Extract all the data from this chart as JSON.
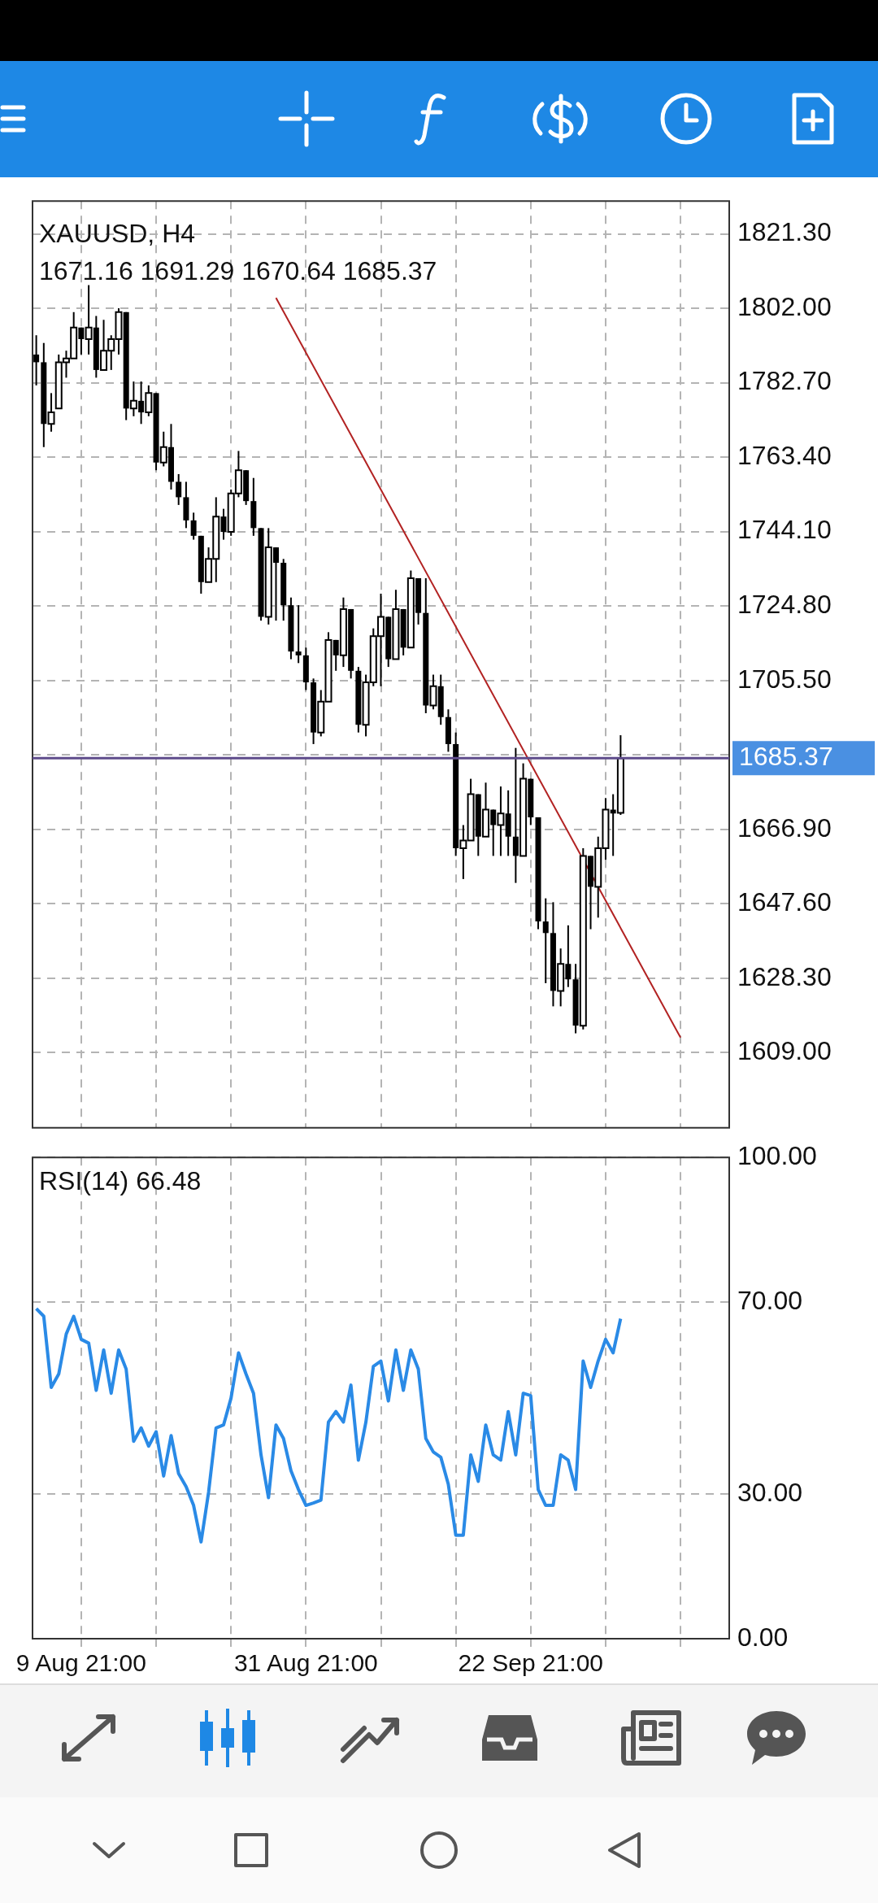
{
  "chart_data": [
    {
      "type": "candlestick",
      "title": "XAUUSD, H4",
      "subtitle": "1671.16 1691.29 1670.64 1685.37",
      "categories": [
        null,
        null,
        null,
        null,
        null,
        null,
        null,
        null,
        null,
        null,
        null,
        null,
        null,
        null,
        null,
        null,
        null,
        null,
        null,
        null,
        null,
        null,
        null,
        null,
        null,
        null,
        null,
        null,
        null,
        null,
        null,
        null,
        null,
        null,
        null,
        null,
        null,
        null,
        null,
        null,
        null,
        null,
        null,
        null,
        null,
        null,
        null,
        null,
        null,
        null,
        null,
        null,
        null,
        null,
        null,
        null,
        null,
        null,
        null,
        null,
        null,
        null,
        null,
        null,
        null,
        null,
        null,
        null,
        null,
        null,
        null,
        null,
        null,
        null,
        null,
        null,
        null,
        null,
        null,
        null,
        null,
        null,
        null,
        null,
        null,
        null,
        null,
        null,
        null,
        null,
        null,
        null,
        null
      ],
      "ohlc": [
        [
          1790,
          1795,
          1782,
          1788
        ],
        [
          1788,
          1793,
          1766,
          1772
        ],
        [
          1772,
          1780,
          1770,
          1775
        ],
        [
          1776,
          1790,
          1776,
          1788
        ],
        [
          1788,
          1791,
          1784,
          1789
        ],
        [
          1789,
          1801,
          1789,
          1797
        ],
        [
          1797,
          1797,
          1790,
          1794
        ],
        [
          1794,
          1808,
          1790,
          1797
        ],
        [
          1797,
          1800,
          1784,
          1786
        ],
        [
          1786,
          1799,
          1786,
          1791
        ],
        [
          1791,
          1795,
          1786,
          1794
        ],
        [
          1794,
          1802,
          1790,
          1801
        ],
        [
          1801,
          1801,
          1773,
          1776
        ],
        [
          1776,
          1783,
          1774,
          1778
        ],
        [
          1778,
          1783,
          1772,
          1775
        ],
        [
          1775,
          1782,
          1774,
          1780
        ],
        [
          1780,
          1780,
          1760,
          1762
        ],
        [
          1762,
          1770,
          1761,
          1766
        ],
        [
          1766,
          1772,
          1755,
          1757
        ],
        [
          1757,
          1759,
          1751,
          1753
        ],
        [
          1753,
          1757,
          1745,
          1747
        ],
        [
          1747,
          1749,
          1742,
          1743
        ],
        [
          1743,
          1743,
          1728,
          1731
        ],
        [
          1731,
          1740,
          1731,
          1737
        ],
        [
          1737,
          1753,
          1731,
          1748
        ],
        [
          1748,
          1750,
          1742,
          1744
        ],
        [
          1744,
          1755,
          1743,
          1754
        ],
        [
          1754,
          1765,
          1753,
          1760
        ],
        [
          1760,
          1760,
          1751,
          1752
        ],
        [
          1752,
          1758,
          1743,
          1745
        ],
        [
          1745,
          1745,
          1721,
          1722
        ],
        [
          1722,
          1745,
          1720,
          1740
        ],
        [
          1740,
          1740,
          1721,
          1736
        ],
        [
          1736,
          1737,
          1721,
          1725
        ],
        [
          1725,
          1727,
          1711,
          1713
        ],
        [
          1713,
          1725,
          1710,
          1712
        ],
        [
          1712,
          1714,
          1703,
          1705
        ],
        [
          1705,
          1706,
          1689,
          1692
        ],
        [
          1692,
          1703,
          1691,
          1700
        ],
        [
          1700,
          1718,
          1700,
          1716
        ],
        [
          1716,
          1716,
          1708,
          1712
        ],
        [
          1712,
          1727,
          1709,
          1724
        ],
        [
          1724,
          1724,
          1706,
          1708
        ],
        [
          1708,
          1709,
          1692,
          1694
        ],
        [
          1694,
          1707,
          1691,
          1705
        ],
        [
          1705,
          1719,
          1704,
          1717
        ],
        [
          1717,
          1728,
          1704,
          1722
        ],
        [
          1722,
          1722,
          1709,
          1711
        ],
        [
          1711,
          1729,
          1711,
          1724
        ],
        [
          1724,
          1724,
          1712,
          1714
        ],
        [
          1714,
          1734,
          1714,
          1732
        ],
        [
          1732,
          1732,
          1720,
          1723
        ],
        [
          1723,
          1732,
          1697,
          1699
        ],
        [
          1699,
          1707,
          1698,
          1704
        ],
        [
          1704,
          1707,
          1694,
          1696
        ],
        [
          1696,
          1698,
          1687,
          1689
        ],
        [
          1689,
          1692,
          1660,
          1662
        ],
        [
          1662,
          1668,
          1654,
          1664
        ],
        [
          1664,
          1680,
          1664,
          1676
        ],
        [
          1676,
          1676,
          1660,
          1665
        ],
        [
          1665,
          1679,
          1665,
          1672
        ],
        [
          1672,
          1672,
          1660,
          1668
        ],
        [
          1668,
          1678,
          1660,
          1671
        ],
        [
          1671,
          1677,
          1660,
          1665
        ],
        [
          1665,
          1688,
          1653,
          1660
        ],
        [
          1660,
          1684,
          1660,
          1680
        ],
        [
          1680,
          1680,
          1668,
          1670
        ],
        [
          1670,
          1670,
          1641,
          1643
        ],
        [
          1643,
          1649,
          1627,
          1640
        ],
        [
          1640,
          1648,
          1621,
          1625
        ],
        [
          1625,
          1636,
          1621,
          1632
        ],
        [
          1632,
          1642,
          1626,
          1628
        ],
        [
          1628,
          1632,
          1614,
          1616
        ],
        [
          1616,
          1662,
          1615,
          1660
        ],
        [
          1660,
          1660,
          1641,
          1652
        ],
        [
          1652,
          1665,
          1644,
          1662
        ],
        [
          1662,
          1675,
          1659,
          1672
        ],
        [
          1672,
          1676,
          1660,
          1671
        ],
        [
          1671.16,
          1691.29,
          1670.64,
          1685.37
        ],
        null,
        null,
        null,
        null,
        null,
        null,
        null,
        null,
        null,
        null,
        null,
        null,
        null,
        null
      ],
      "series": [
        {
          "type": "line",
          "color": "#b22222",
          "values": [
            null,
            null,
            null,
            null,
            null,
            null,
            null,
            null,
            null,
            null,
            null,
            null,
            null,
            null,
            null,
            null,
            null,
            null,
            null,
            null,
            null,
            null,
            null,
            null,
            null,
            null,
            null,
            null,
            null,
            null,
            null,
            null,
            1804.7,
            null,
            null,
            null,
            null,
            null,
            null,
            null,
            null,
            null,
            null,
            null,
            null,
            null,
            null,
            null,
            null,
            null,
            null,
            null,
            null,
            null,
            null,
            null,
            null,
            null,
            null,
            null,
            null,
            null,
            null,
            null,
            null,
            null,
            null,
            null,
            null,
            null,
            null,
            null,
            null,
            null,
            null,
            null,
            null,
            null,
            null,
            null,
            null,
            null,
            null,
            null,
            null,
            null,
            1612.9,
            null,
            null,
            null,
            null,
            null,
            null
          ]
        }
      ],
      "ylim": [
        1589.5,
        1829.8
      ],
      "yticks": [
        {
          "value": 1609,
          "label": "1609.00"
        },
        {
          "value": 1628.3,
          "label": "1628.30"
        },
        {
          "value": 1647.6,
          "label": "1647.60"
        },
        {
          "value": 1666.9,
          "label": "1666.90"
        },
        {
          "value": 1686.2,
          "label": null
        },
        {
          "value": 1705.5,
          "label": "1705.50"
        },
        {
          "value": 1724.8,
          "label": "1724.80"
        },
        {
          "value": 1744.1,
          "label": "1744.10"
        },
        {
          "value": 1763.4,
          "label": "1763.40"
        },
        {
          "value": 1782.7,
          "label": "1782.70"
        },
        {
          "value": 1802,
          "label": "1802.00"
        },
        {
          "value": 1821.3,
          "label": "1821.30"
        }
      ],
      "ref_lines": [
        {
          "axis": "y",
          "value": 1685.37,
          "label": "1685.37",
          "color": "#5e4b8b"
        }
      ],
      "grid": true,
      "legend": false,
      "tick_labels": "y"
    },
    {
      "type": "line",
      "title": "RSI(14) 66.48",
      "categories": [
        null,
        null,
        null,
        null,
        null,
        null,
        "9 Aug 21:00",
        null,
        null,
        null,
        null,
        null,
        null,
        null,
        null,
        null,
        null,
        null,
        null,
        null,
        null,
        null,
        null,
        null,
        null,
        null,
        null,
        null,
        null,
        null,
        null,
        null,
        null,
        null,
        null,
        null,
        "31 Aug 21:00",
        null,
        null,
        null,
        null,
        null,
        null,
        null,
        null,
        null,
        null,
        null,
        null,
        null,
        null,
        null,
        null,
        null,
        null,
        null,
        null,
        null,
        null,
        null,
        null,
        null,
        null,
        null,
        null,
        null,
        "22 Sep 21:00",
        null,
        null,
        null,
        null,
        null,
        null,
        null,
        null,
        null,
        null,
        null,
        null,
        null,
        null,
        null,
        null,
        null,
        null,
        null,
        null,
        null,
        null,
        null,
        null,
        null,
        null
      ],
      "series": [
        {
          "color": "#2a8ae6",
          "values": [
            68.6,
            67,
            52.2,
            55,
            63.3,
            67,
            62.2,
            61.4,
            51.6,
            60,
            51,
            60,
            56,
            41,
            43.8,
            40,
            43,
            33.8,
            42.2,
            34.3,
            31.6,
            27.7,
            20.1,
            30.4,
            43.8,
            44.4,
            50,
            59.4,
            55,
            51,
            38.2,
            29.3,
            44.4,
            41.6,
            34.9,
            31,
            27.7,
            28.2,
            28.8,
            45,
            47.2,
            45,
            52.7,
            37.1,
            45,
            56.6,
            57.7,
            49.4,
            60,
            51.6,
            60,
            56,
            41.6,
            38.8,
            37.7,
            32.1,
            21.5,
            21.5,
            38.2,
            32.7,
            44.4,
            38.2,
            37.1,
            47.2,
            38.2,
            51,
            50.5,
            31,
            27.7,
            27.7,
            38.2,
            37.1,
            31,
            57.7,
            52.2,
            57.7,
            62.2,
            59.4,
            66.5,
            null,
            null,
            null,
            null,
            null,
            null,
            null,
            null,
            null,
            null,
            null,
            null,
            null,
            null
          ]
        }
      ],
      "ylim": [
        0,
        100
      ],
      "yticks": [
        {
          "value": 0,
          "label": "0.00"
        },
        {
          "value": 30,
          "label": "30.00"
        },
        {
          "value": 70,
          "label": "70.00"
        },
        {
          "value": 100,
          "label": "100.00"
        }
      ],
      "grid": true,
      "legend": false
    }
  ]
}
